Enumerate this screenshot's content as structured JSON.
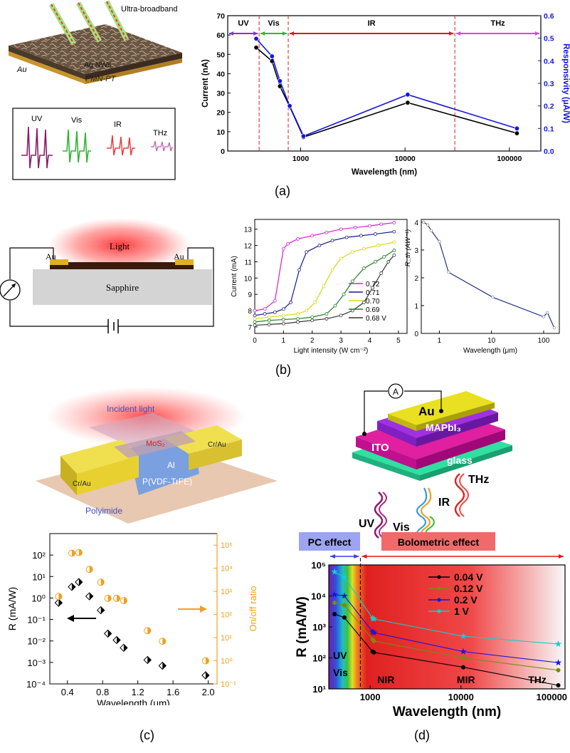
{
  "captions": {
    "a": "(a)",
    "b": "(b)",
    "c": "(c)",
    "d": "(d)"
  },
  "panel_a": {
    "device": {
      "ultra": "Ultra-broadband",
      "agnws": "Ag NWs",
      "au": "Au",
      "pmnpt": "PMN-PT"
    },
    "inset": {
      "uv": "UV",
      "vis": "Vis",
      "ir": "IR",
      "thz": "THz"
    },
    "colors": {
      "current": "#000000",
      "responsivity": "#1515e0"
    }
  },
  "panel_b": {
    "schematic": {
      "light": "Light",
      "au_left": "Au",
      "au_right": "Au",
      "sapphire": "Sapphire"
    }
  },
  "panel_c": {
    "schematic": {
      "incident": "Incident light",
      "mos2": "MoS₂",
      "crau_left": "Cr/Au",
      "crau_right": "Cr/Au",
      "al": "Al",
      "pvdf": "P(VDF-TrFE)",
      "polyimide": "Polyimide"
    }
  },
  "panel_d": {
    "schematic": {
      "au": "Au",
      "mapbi": "MAPbI₃",
      "ito": "ITO",
      "glass": "glass",
      "ammeter": "A",
      "uv": "UV",
      "vis": "Vis",
      "ir": "IR",
      "thz": "THz"
    }
  },
  "chart_data": [
    {
      "id": "a-chart",
      "type": "line",
      "xlabel": "Wavelength (nm)",
      "ylabel": "Current (nA)",
      "ylabel_right": "Responsivity (μA/W)",
      "x_scale": "log",
      "xlim": [
        200,
        200000
      ],
      "ylim": [
        0,
        70
      ],
      "ylim_right": [
        0,
        0.6
      ],
      "x_ticks": [
        1000,
        10000,
        100000
      ],
      "x_tick_labels": [
        "1000",
        "10000",
        "100000"
      ],
      "y_ticks": [
        0,
        10,
        20,
        30,
        40,
        50,
        60,
        70
      ],
      "y_tick_labels": [
        "0",
        "10",
        "20",
        "30",
        "40",
        "50",
        "60",
        "70"
      ],
      "y_right_ticks": [
        0.0,
        0.1,
        0.2,
        0.3,
        0.4,
        0.5,
        0.6
      ],
      "y_right_tick_labels": [
        "0.0",
        "0.1",
        "0.2",
        "0.3",
        "0.4",
        "0.5",
        "0.6"
      ],
      "regions": [
        {
          "label": "UV",
          "from": 200,
          "to": 400,
          "color": "#8a2be2"
        },
        {
          "label": "Vis",
          "from": 400,
          "to": 760,
          "color": "#22c022"
        },
        {
          "label": "IR",
          "from": 760,
          "to": 30000,
          "color": "#e81414"
        },
        {
          "label": "THz",
          "from": 30000,
          "to": 200000,
          "color": "#e040e0"
        }
      ],
      "boundaries": [
        400,
        760,
        30000
      ],
      "series": [
        {
          "axis": "left",
          "color": "#000000",
          "x": [
            375,
            532,
            633,
            785,
            1064,
            10600,
            118000
          ],
          "values": [
            53.5,
            46.5,
            33.5,
            23,
            7.2,
            25,
            9.2
          ]
        },
        {
          "axis": "right",
          "color": "#1515e0",
          "x": [
            375,
            532,
            633,
            785,
            1064,
            10600,
            118000
          ],
          "values": [
            0.498,
            0.42,
            0.31,
            0.2,
            0.066,
            0.25,
            0.1
          ]
        }
      ]
    },
    {
      "id": "b-chart1",
      "type": "line",
      "xlabel": "Light intensity (W cm⁻²)",
      "ylabel": "Current (mA)",
      "xlim": [
        0,
        5.3
      ],
      "ylim": [
        6.6,
        13.6
      ],
      "x_ticks": [
        0,
        1,
        2,
        3,
        4,
        5
      ],
      "x_tick_labels": [
        "0",
        "1",
        "2",
        "3",
        "4",
        "5"
      ],
      "y_ticks": [
        7,
        8,
        9,
        10,
        11,
        12,
        13
      ],
      "y_tick_labels": [
        "7",
        "8",
        "9",
        "10",
        "11",
        "12",
        "13"
      ],
      "legend": [
        "0.72",
        "0.71",
        "0.70",
        "0.69",
        "0.68 V"
      ],
      "series": [
        {
          "name": "0.72",
          "color": "#d020d0",
          "x": [
            0,
            0.35,
            0.7,
            1.0,
            1.15,
            1.5,
            2.0,
            2.5,
            3.0,
            3.5,
            4.0,
            4.4,
            4.85
          ],
          "values": [
            8.0,
            8.1,
            8.6,
            11.8,
            12.1,
            12.4,
            12.6,
            12.8,
            13.0,
            13.1,
            13.2,
            13.3,
            13.4
          ]
        },
        {
          "name": "0.71",
          "color": "#1a1a8a",
          "x": [
            0,
            0.35,
            0.7,
            1.0,
            1.25,
            1.55,
            1.8,
            2.25,
            2.7,
            3.2,
            3.7,
            4.2,
            4.85
          ],
          "values": [
            7.7,
            7.8,
            7.9,
            8.1,
            8.5,
            10.5,
            11.6,
            12.0,
            12.3,
            12.5,
            12.6,
            12.7,
            12.85
          ]
        },
        {
          "name": "0.70",
          "color": "#d8d818",
          "x": [
            0,
            0.5,
            1.0,
            1.5,
            1.8,
            2.1,
            2.4,
            2.7,
            3.0,
            3.4,
            3.8,
            4.3,
            4.85
          ],
          "values": [
            7.5,
            7.6,
            7.7,
            7.8,
            8.0,
            8.5,
            9.5,
            10.5,
            11.2,
            11.6,
            11.8,
            12.0,
            12.2
          ]
        },
        {
          "name": "0.69",
          "color": "#208020",
          "x": [
            0,
            0.5,
            1.0,
            1.5,
            2.0,
            2.5,
            2.8,
            3.1,
            3.4,
            3.8,
            4.2,
            4.5,
            4.85
          ],
          "values": [
            7.3,
            7.4,
            7.45,
            7.5,
            7.6,
            7.8,
            8.3,
            9.0,
            9.8,
            10.6,
            11.0,
            11.3,
            11.7
          ]
        },
        {
          "name": "0.68 V",
          "color": "#303030",
          "x": [
            0,
            0.5,
            1.0,
            1.5,
            2.0,
            2.5,
            3.0,
            3.4,
            3.8,
            4.1,
            4.4,
            4.65,
            4.85
          ],
          "values": [
            7.1,
            7.15,
            7.2,
            7.3,
            7.4,
            7.5,
            7.7,
            8.0,
            8.5,
            9.4,
            10.3,
            11.0,
            11.4
          ]
        }
      ]
    },
    {
      "id": "b-chart2",
      "type": "line",
      "xlabel": "Wavelength (μm)",
      "ylabel": "R_th (AW⁻¹)",
      "x_scale": "log",
      "xlim": [
        0.45,
        200
      ],
      "ylim": [
        0,
        4.1
      ],
      "x_ticks": [
        1,
        10,
        100
      ],
      "x_tick_labels": [
        "1",
        "10",
        "100"
      ],
      "y_ticks": [
        0,
        1,
        2,
        3,
        4
      ],
      "y_tick_labels": [
        "0",
        "1",
        "2",
        "3",
        "4"
      ],
      "series": [
        {
          "color": "#223388",
          "x": [
            0.5,
            0.6,
            0.7,
            1.0,
            1.5,
            10.6,
            100,
            118,
            160
          ],
          "values": [
            4.0,
            3.9,
            3.7,
            3.3,
            2.2,
            1.3,
            0.6,
            0.75,
            0.2
          ]
        }
      ]
    },
    {
      "id": "c-chart",
      "type": "scatter",
      "xlabel": "Wavelength (μm)",
      "ylabel": "R (mA/W)",
      "ylabel_right": "On/off ratio",
      "y_scale": "log",
      "x_ticks": [
        0.4,
        0.8,
        1.2,
        1.6,
        2.0
      ],
      "x_tick_labels": [
        "0.4",
        "0.8",
        "1.2",
        "1.6",
        "2.0"
      ],
      "y_ticks": [
        -4,
        -3,
        -2,
        -1,
        0,
        1,
        2
      ],
      "y_tick_labels": [
        "10⁻⁴",
        "10⁻³",
        "10⁻²",
        "10⁻¹",
        "10⁰",
        "10¹",
        "10²"
      ],
      "y_right_ticks": [
        -1,
        0,
        1,
        2,
        3,
        4,
        5
      ],
      "y_right_tick_labels": [
        "10⁻¹",
        "10⁰",
        "10¹",
        "10²",
        "10³",
        "10⁴",
        "10⁵"
      ],
      "xlim": [
        0.2,
        2.1
      ],
      "ylim_log": [
        -4,
        3
      ],
      "ylim_right_log": [
        -1,
        5.5
      ],
      "series": [
        {
          "axis": "left",
          "color": "#000000",
          "x": [
            0.3,
            0.45,
            0.53,
            0.65,
            0.78,
            0.86,
            0.96,
            1.04,
            1.31,
            1.48,
            1.97
          ],
          "values": [
            0.6,
            3.3,
            5.5,
            1.2,
            0.27,
            0.022,
            0.011,
            0.0048,
            0.0013,
            0.0007,
            0.00025
          ]
        },
        {
          "axis": "right",
          "color": "#f0a020",
          "x": [
            0.3,
            0.45,
            0.53,
            0.65,
            0.78,
            0.86,
            0.96,
            1.04,
            1.31,
            1.48,
            1.97
          ],
          "values": [
            600,
            45000,
            48000,
            9000,
            2500,
            500,
            500,
            400,
            20,
            7,
            1
          ]
        }
      ]
    },
    {
      "id": "d-chart",
      "type": "line",
      "xlabel": "Wavelength (nm)",
      "ylabel": "R (mA/W)",
      "x_scale": "log",
      "y_scale": "log",
      "xlim": [
        350,
        140000
      ],
      "ylim_log": [
        1,
        5
      ],
      "x_ticks": [
        1000,
        10000,
        100000
      ],
      "x_tick_labels": [
        "1000",
        "10000",
        "100000"
      ],
      "y_ticks": [
        1,
        2,
        3,
        4,
        5
      ],
      "y_tick_labels": [
        "10¹",
        "10²",
        "10³",
        "10⁴",
        "10⁵"
      ],
      "legend": [
        "0.04 V",
        "0.12 V",
        "0.2 V",
        "1 V"
      ],
      "effects": [
        {
          "label": "PC effect",
          "color": "#3d3de0"
        },
        {
          "label": "Bolometric effect",
          "color": "#e81414"
        }
      ],
      "region_labels": [
        "UV",
        "Vis",
        "NIR",
        "MIR",
        "THz"
      ],
      "series": [
        {
          "name": "0.04 V",
          "color": "#000000",
          "x": [
            405,
            520,
            1064,
            1100,
            10600,
            118000
          ],
          "values": [
            2600,
            2000,
            160,
            150,
            50,
            13
          ]
        },
        {
          "name": "0.12 V",
          "color": "#7a8a10",
          "x": [
            405,
            520,
            1064,
            1100,
            10600,
            118000
          ],
          "values": [
            6000,
            5000,
            400,
            350,
            100,
            40
          ]
        },
        {
          "name": "0.2 V",
          "color": "#1515e0",
          "x": [
            405,
            520,
            1064,
            1100,
            10600,
            118000
          ],
          "values": [
            11000,
            10000,
            700,
            650,
            160,
            70
          ]
        },
        {
          "name": "1 V",
          "color": "#10d0d0",
          "x": [
            405,
            520,
            1064,
            1100,
            10600,
            118000
          ],
          "values": [
            60000,
            40000,
            1900,
            1800,
            500,
            280
          ]
        }
      ]
    }
  ]
}
